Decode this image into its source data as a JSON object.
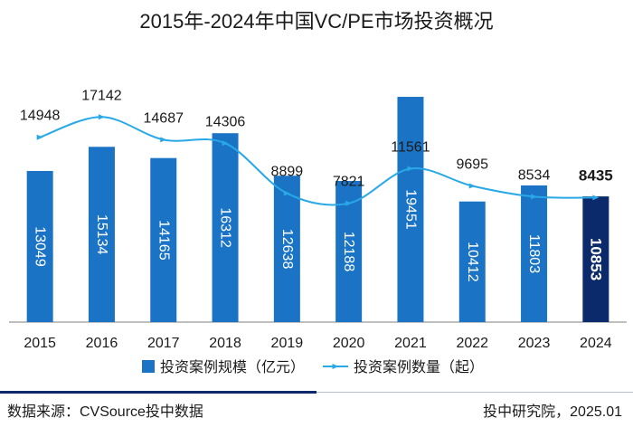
{
  "title": "2015年-2024年中国VC/PE市场投资概况",
  "footer": {
    "source": "数据来源：CVSource投中数据",
    "credit": "投中研究院，2025.01"
  },
  "colors": {
    "bar": "#1a73c4",
    "bar_highlight": "#0b2a6b",
    "line": "#29a8e8",
    "axis": "#7f7f7f"
  },
  "chart_data": {
    "type": "bar",
    "categories": [
      "2015",
      "2016",
      "2017",
      "2018",
      "2019",
      "2020",
      "2021",
      "2022",
      "2023",
      "2024"
    ],
    "series": [
      {
        "name": "投资案例规模（亿元）",
        "kind": "bar",
        "values": [
          13049,
          15134,
          14165,
          16312,
          12638,
          12188,
          19451,
          10412,
          11803,
          10853
        ],
        "labels": [
          "13049",
          "15134",
          "14165",
          "16312",
          "12638",
          "12188",
          "19451",
          "10412",
          "11803",
          "10853"
        ]
      },
      {
        "name": "投资案例数量（起）",
        "kind": "line",
        "values": [
          14948,
          17142,
          14687,
          14306,
          8899,
          7821,
          11561,
          9695,
          8534,
          8435
        ],
        "labels": [
          "14948",
          "17142",
          "14687",
          "14306",
          "8899",
          "7821",
          "11561",
          "9695",
          "8534",
          "8435"
        ]
      }
    ],
    "bar_ylim": [
      0,
      20000
    ],
    "line_ylim": [
      -5000,
      20000
    ],
    "highlight": "2024",
    "legend": "bottom"
  }
}
